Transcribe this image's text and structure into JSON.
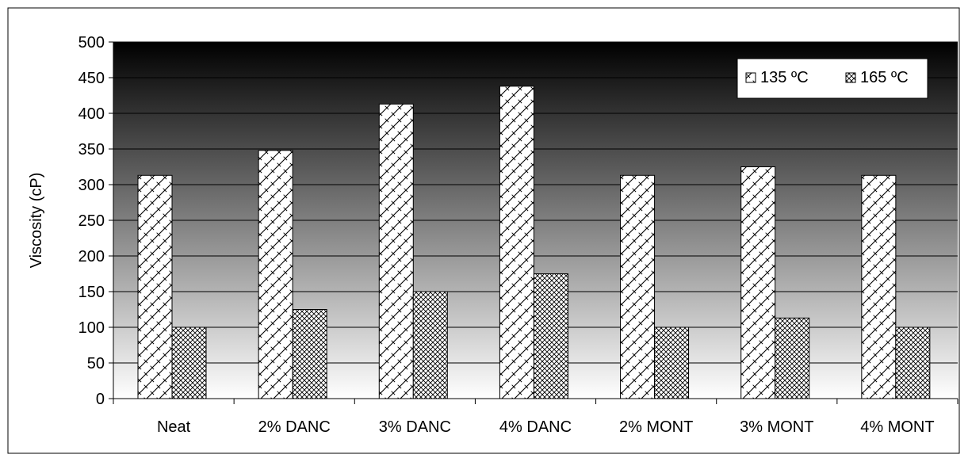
{
  "chart_data": {
    "type": "bar",
    "categories": [
      "Neat",
      "2% DANC",
      "3% DANC",
      "4% DANC",
      "2% MONT",
      "3% MONT",
      "4% MONT"
    ],
    "series": [
      {
        "name": "135 ºC",
        "values": [
          313,
          348,
          413,
          438,
          313,
          325,
          313
        ]
      },
      {
        "name": "165 ºC",
        "values": [
          100,
          125,
          150,
          175,
          100,
          113,
          100
        ]
      }
    ],
    "title": "",
    "xlabel": "",
    "ylabel": "Viscosity (cP)",
    "ylim": [
      0,
      500
    ],
    "yticks": [
      0,
      50,
      100,
      150,
      200,
      250,
      300,
      350,
      400,
      450,
      500
    ],
    "grid": true,
    "legend": "top-right",
    "colors": {
      "background_top": "#000000",
      "background_bottom": "#ffffff",
      "bar_fill": "#ffffff",
      "bar_pattern": "#000000"
    }
  }
}
